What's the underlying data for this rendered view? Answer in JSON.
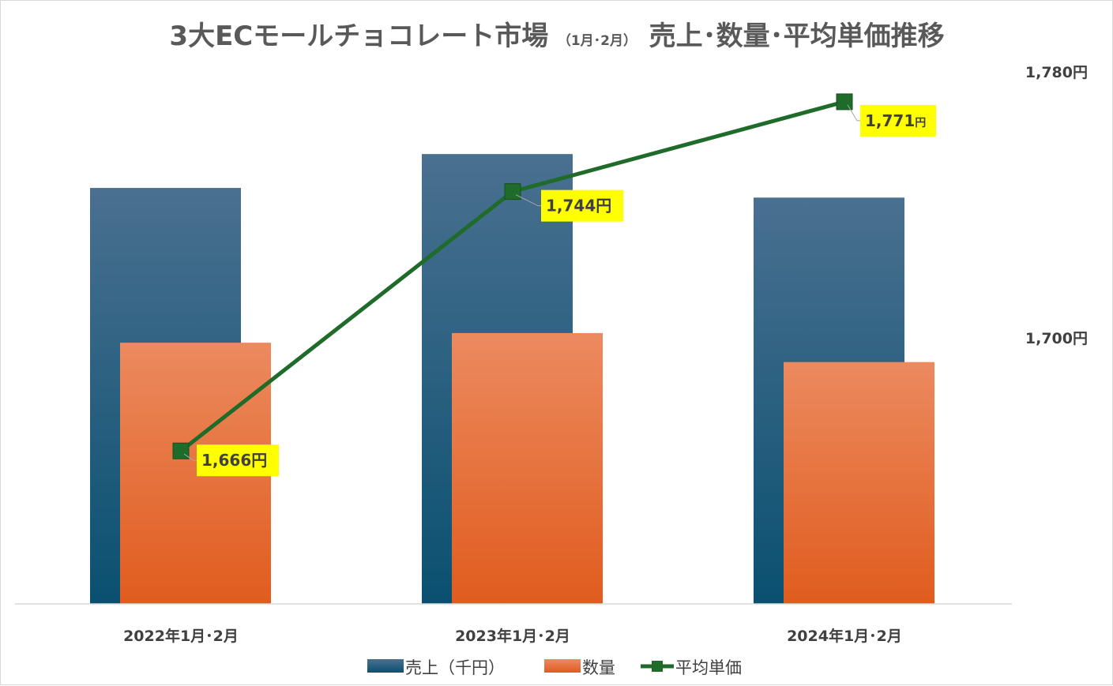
{
  "chart_data": {
    "type": "bar",
    "title": "3大ECモールチョコレート市場",
    "title_sub": "（1月･2月）",
    "title_tail": "売上･数量･平均単価推移",
    "categories": [
      "2022年1月･2月",
      "2023年1月･2月",
      "2024年1月･2月"
    ],
    "series": [
      {
        "name": "売上（千円）",
        "type": "bar",
        "axis": "primary",
        "values": [
          86,
          93,
          84
        ],
        "color_top": "#4a7090",
        "color_bottom": "#0a5070"
      },
      {
        "name": "数量",
        "type": "bar",
        "axis": "primary",
        "values": [
          54,
          56,
          50
        ],
        "color_top": "#ec8a5f",
        "color_bottom": "#e05c1e"
      },
      {
        "name": "平均単価",
        "type": "line",
        "axis": "secondary",
        "values": [
          1666,
          1744,
          1771
        ],
        "color": "#1e6b2a"
      }
    ],
    "data_labels": [
      "1,666円",
      "1,744円",
      "1,771円"
    ],
    "data_label_bg": "#ffff00",
    "primary_axis": {
      "ylim": [
        0,
        110
      ],
      "visible": false
    },
    "secondary_axis": {
      "ylim": [
        1620,
        1780
      ],
      "ticks": [
        1700,
        1780
      ],
      "tick_labels": [
        "1,700円",
        "1,780円"
      ]
    },
    "legend": {
      "position": "bottom",
      "entries": [
        "売上（千円）",
        "数量",
        "平均単価"
      ]
    },
    "grid": false
  }
}
